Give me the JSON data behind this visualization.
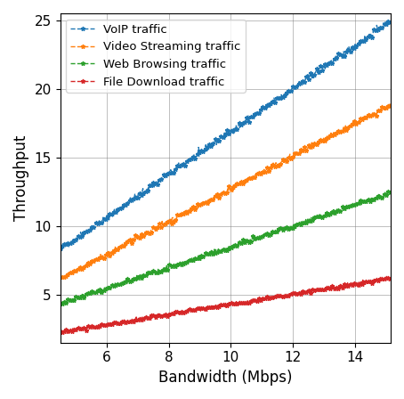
{
  "x_start": 4.5,
  "x_end": 15.15,
  "n_points": 500,
  "series": [
    {
      "label": "VoIP traffic",
      "color": "#1f77b4",
      "slope": 1.565,
      "intercept": 1.25,
      "noise_std": 0.12
    },
    {
      "label": "Video Streaming traffic",
      "color": "#ff7f0e",
      "slope": 1.19,
      "intercept": 0.82,
      "noise_std": 0.1
    },
    {
      "label": "Web Browsing traffic",
      "color": "#2ca02c",
      "slope": 0.76,
      "intercept": 0.9,
      "noise_std": 0.08
    },
    {
      "label": "File Download traffic",
      "color": "#d62728",
      "slope": 0.37,
      "intercept": 0.6,
      "noise_std": 0.06
    }
  ],
  "xlabel": "Bandwidth (Mbps)",
  "ylabel": "Throughput",
  "xlim": [
    4.5,
    15.15
  ],
  "ylim": [
    1.5,
    25.5
  ],
  "xticks": [
    6,
    8,
    10,
    12,
    14
  ],
  "yticks": [
    5,
    10,
    15,
    20,
    25
  ],
  "grid": true,
  "legend_loc": "upper left",
  "marker": "*",
  "linestyle": "--",
  "markersize": 3.5,
  "linewidth": 1.0,
  "seed": 42,
  "legend_fontsize": 9.5,
  "xlabel_fontsize": 12,
  "ylabel_fontsize": 12,
  "tick_fontsize": 11
}
